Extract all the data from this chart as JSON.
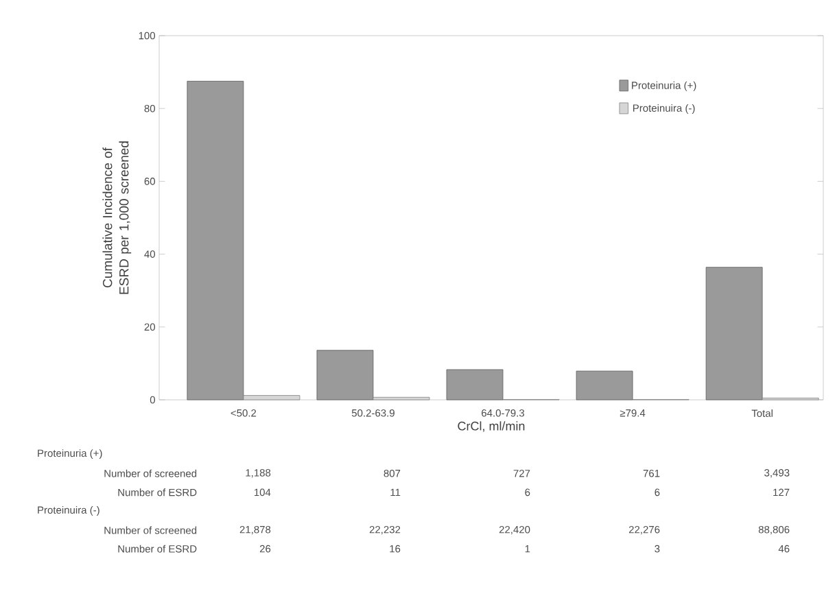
{
  "chart_data": {
    "type": "bar",
    "xlabel": "CrCl, ml/min",
    "ylabel": "Cumulative Incidence of ESRD per 1,000 screened",
    "categories": [
      "<50.2",
      "50.2-63.9",
      "64.0-79.3",
      "≥79.4",
      "Total"
    ],
    "series": [
      {
        "name": "Proteinuria (+)",
        "color": "#9a9a9a",
        "values": [
          87.5,
          13.6,
          8.3,
          7.9,
          36.4
        ]
      },
      {
        "name": "Proteinuira (-)",
        "color": "#d6d6d6",
        "values": [
          1.2,
          0.7,
          0.1,
          0.1,
          0.5
        ]
      }
    ],
    "ylim": [
      0,
      100
    ],
    "yticks": [
      0,
      20,
      40,
      60,
      80,
      100
    ],
    "legend": "top right",
    "annotations": [
      "Proteinuria (+)",
      "Number of screened",
      "1,188",
      "807",
      "727",
      "761",
      "3,493",
      "Number of ESRD",
      "104",
      "11",
      "6",
      "6",
      "127",
      "Proteinuira (-)",
      "Number of screened",
      "21,878",
      "22,232",
      "22,420",
      "22,276",
      "88,806",
      "Number of ESRD",
      "26",
      "16",
      "1",
      "3",
      "46"
    ]
  }
}
